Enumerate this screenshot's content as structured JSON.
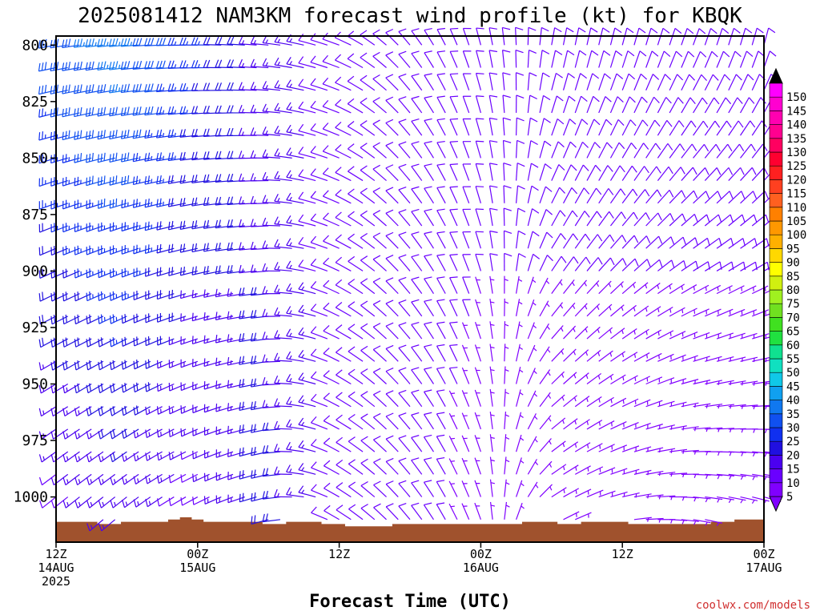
{
  "chart_data": {
    "type": "wind_barb_time_height",
    "title": "2025081412 NAM3KM forecast wind profile (kt) for KBQK",
    "xlabel": "Forecast Time (UTC)",
    "ylabel": "",
    "y_axis": {
      "min": 1020,
      "max": 796,
      "inverted": true,
      "ticks": [
        "800",
        "825",
        "850",
        "875",
        "900",
        "925",
        "950",
        "975",
        "1000"
      ]
    },
    "x_axis": {
      "range_hours": [
        0,
        60
      ],
      "ticks": [
        {
          "hour": 0,
          "line1": "12Z",
          "line2": "14AUG",
          "line3": "2025"
        },
        {
          "hour": 12,
          "line1": "00Z",
          "line2": "15AUG",
          "line3": ""
        },
        {
          "hour": 24,
          "line1": "12Z",
          "line2": "",
          "line3": ""
        },
        {
          "hour": 36,
          "line1": "00Z",
          "line2": "16AUG",
          "line3": ""
        },
        {
          "hour": 48,
          "line1": "12Z",
          "line2": "",
          "line3": ""
        },
        {
          "hour": 60,
          "line1": "00Z",
          "line2": "17AUG",
          "line3": ""
        }
      ]
    },
    "forecast_hours": [
      0,
      1,
      2,
      3,
      4,
      5,
      6,
      7,
      8,
      9,
      10,
      11,
      12,
      13,
      14,
      15,
      16,
      17,
      18,
      19,
      20,
      21,
      22,
      23,
      24,
      25,
      26,
      27,
      28,
      29,
      30,
      31,
      32,
      33,
      34,
      35,
      36,
      37,
      38,
      39,
      40,
      41,
      42,
      43,
      44,
      45,
      46,
      47,
      48,
      49,
      50,
      51,
      52,
      53,
      54,
      55,
      56,
      57,
      58,
      59,
      60
    ],
    "pressure_levels_hpa": [
      800,
      810,
      820,
      830,
      840,
      850,
      860,
      870,
      880,
      890,
      900,
      910,
      920,
      930,
      940,
      950,
      960,
      970,
      980,
      990,
      1000,
      1010
    ],
    "wind_barbs": {
      "description": "direction (deg, wind from) and speed (kt) per forecast hour, interpolated across pressure levels; NaN where below ground",
      "key_profiles": [
        {
          "hour": 0,
          "top_dir": 260,
          "top_spd": 30,
          "sfc_dir": 230,
          "sfc_spd": 10
        },
        {
          "hour": 6,
          "top_dir": 265,
          "top_spd": 35,
          "sfc_dir": 230,
          "sfc_spd": 15
        },
        {
          "hour": 12,
          "top_dir": 270,
          "top_spd": 25,
          "sfc_dir": 240,
          "sfc_spd": 10
        },
        {
          "hour": 18,
          "top_dir": 275,
          "top_spd": 15,
          "sfc_dir": 255,
          "sfc_spd": 20
        },
        {
          "hour": 24,
          "top_dir": 290,
          "top_spd": 10,
          "sfc_dir": 300,
          "sfc_spd": 10
        },
        {
          "hour": 30,
          "top_dir": 320,
          "top_spd": 10,
          "sfc_dir": 320,
          "sfc_spd": 10
        },
        {
          "hour": 36,
          "top_dir": 345,
          "top_spd": 10,
          "sfc_dir": 340,
          "sfc_spd": 5
        },
        {
          "hour": 42,
          "top_dir": 10,
          "top_spd": 10,
          "sfc_dir": 60,
          "sfc_spd": 5
        },
        {
          "hour": 48,
          "top_dir": 15,
          "top_spd": 10,
          "sfc_dir": 80,
          "sfc_spd": 5
        },
        {
          "hour": 54,
          "top_dir": 20,
          "top_spd": 10,
          "sfc_dir": 100,
          "sfc_spd": 5
        },
        {
          "hour": 60,
          "top_dir": 15,
          "top_spd": 10,
          "sfc_dir": 110,
          "sfc_spd": 5
        }
      ]
    },
    "surface_pressure_hpa": [
      1011,
      1011,
      1011,
      1011,
      1012,
      1012,
      1011,
      1011,
      1011,
      1011,
      1010,
      1009,
      1010,
      1011,
      1011,
      1011,
      1011,
      1011,
      1012,
      1012,
      1011,
      1011,
      1011,
      1012,
      1012,
      1013,
      1013,
      1013,
      1013,
      1012,
      1012,
      1012,
      1012,
      1012,
      1012,
      1012,
      1012,
      1012,
      1012,
      1012,
      1011,
      1011,
      1011,
      1012,
      1012,
      1011,
      1011,
      1011,
      1011,
      1012,
      1012,
      1012,
      1012,
      1012,
      1012,
      1012,
      1011,
      1011,
      1010,
      1010,
      1010
    ],
    "ground_color": "#a0522d",
    "colorbar": {
      "labels": [
        "5",
        "10",
        "15",
        "20",
        "25",
        "30",
        "35",
        "40",
        "45",
        "50",
        "55",
        "60",
        "65",
        "70",
        "75",
        "80",
        "85",
        "90",
        "95",
        "100",
        "105",
        "110",
        "115",
        "120",
        "125",
        "130",
        "135",
        "140",
        "145",
        "150"
      ],
      "colors": [
        "#8000ff",
        "#6a00ff",
        "#4b00f0",
        "#2010e0",
        "#1030f0",
        "#1050f0",
        "#1078f0",
        "#10a0f0",
        "#10c8e8",
        "#10e0c0",
        "#10e090",
        "#20e040",
        "#40e020",
        "#70e020",
        "#a0f020",
        "#d0f010",
        "#ffff00",
        "#ffd800",
        "#ffb000",
        "#ff9800",
        "#ff8000",
        "#ff6020",
        "#ff4020",
        "#ff2020",
        "#ff0030",
        "#ff0060",
        "#ff0090",
        "#ff00b0",
        "#ff00d0",
        "#ff00ff"
      ],
      "top_arrow_color": "#000000",
      "bottom_arrow_color": "#8000ff"
    },
    "credit": "coolwx.com/models",
    "grid": false,
    "legend": "right-colorbar"
  }
}
